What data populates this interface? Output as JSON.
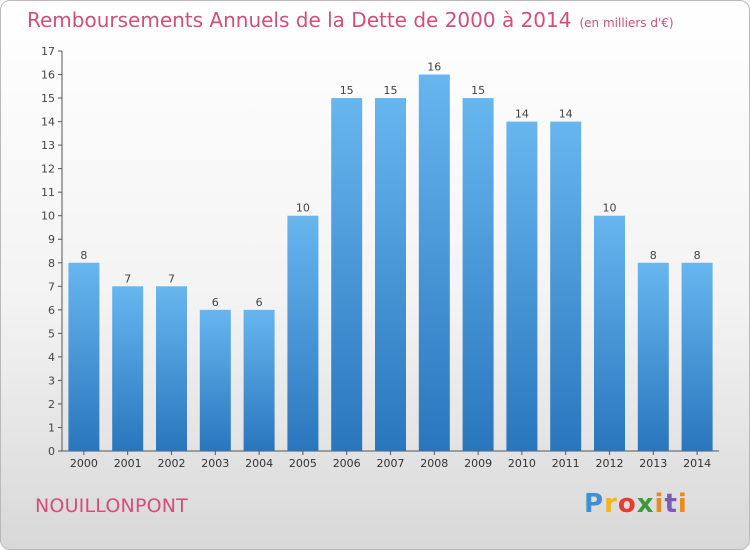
{
  "title": "Remboursements Annuels de la Dette de 2000 à 2014",
  "unit": "(en milliers d'€)",
  "commune": "NOUILLONPONT",
  "logo": {
    "text": "Proxiti"
  },
  "colors": {
    "title": "#d34e7a",
    "bar_top": "#67b6ef",
    "bar_bottom": "#2a76bd",
    "axis": "#666666"
  },
  "chart_data": {
    "type": "bar",
    "categories": [
      "2000",
      "2001",
      "2002",
      "2003",
      "2004",
      "2005",
      "2006",
      "2007",
      "2008",
      "2009",
      "2010",
      "2011",
      "2012",
      "2013",
      "2014"
    ],
    "values": [
      8,
      7,
      7,
      6,
      6,
      10,
      15,
      15,
      16,
      15,
      14,
      14,
      10,
      8,
      8
    ],
    "ylim": [
      0,
      17
    ],
    "yticks": [
      0,
      1,
      2,
      3,
      4,
      5,
      6,
      7,
      8,
      9,
      10,
      11,
      12,
      13,
      14,
      15,
      16,
      17
    ],
    "grid": false,
    "data_labels": true
  }
}
